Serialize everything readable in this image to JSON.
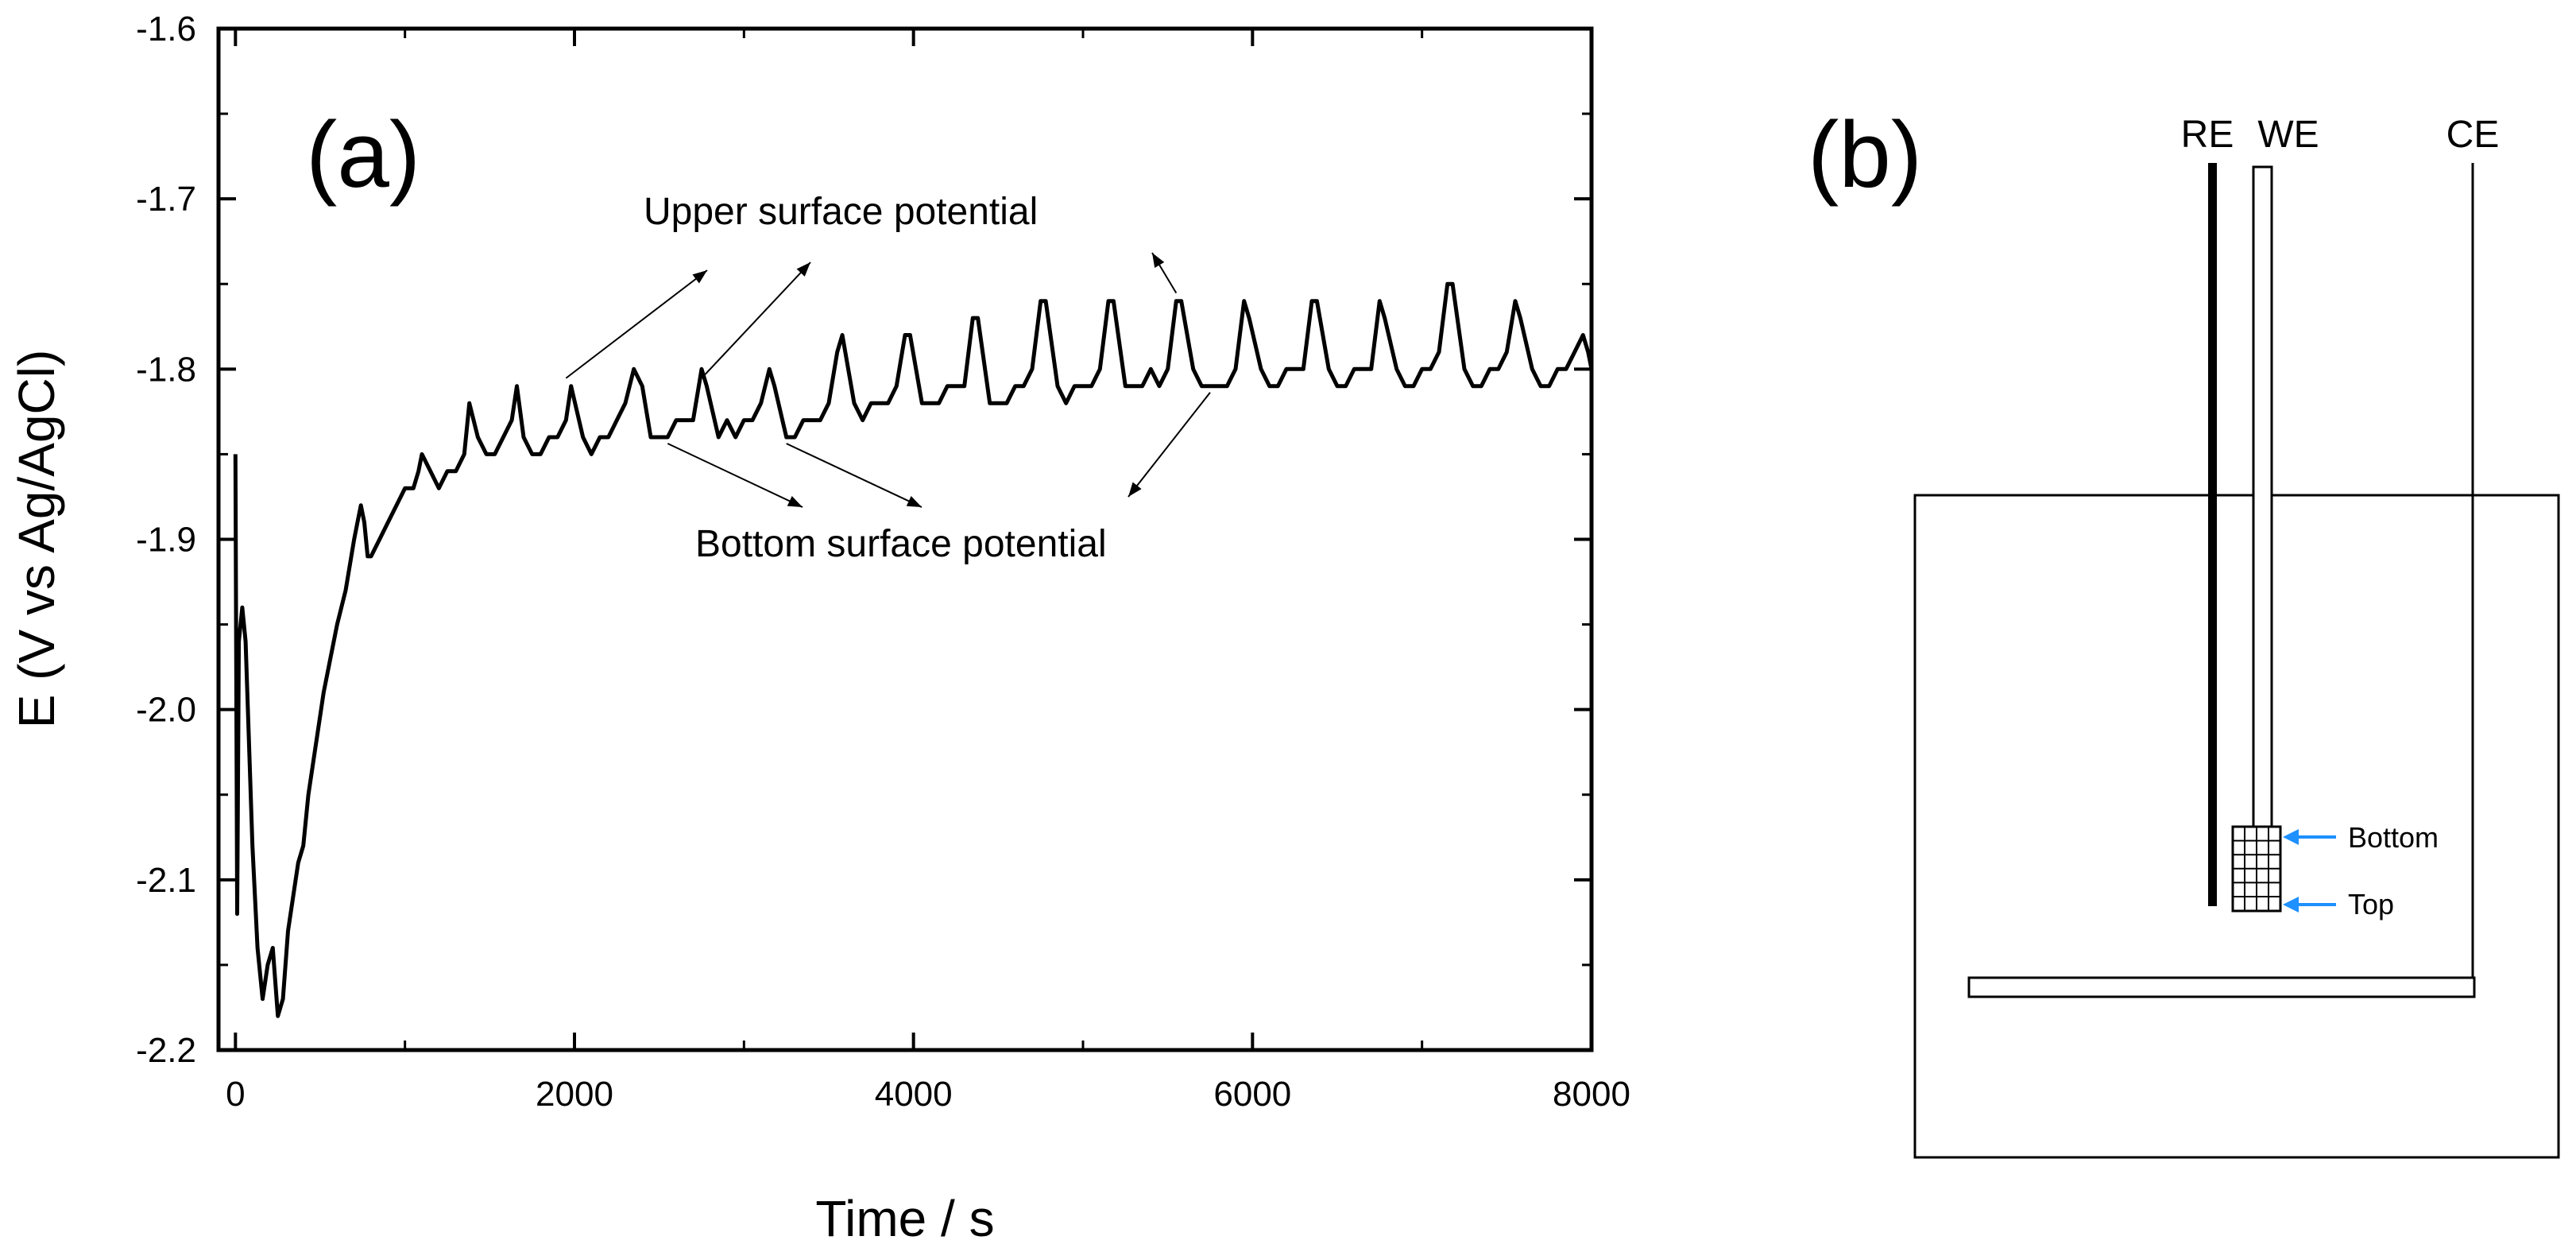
{
  "chart_data": {
    "type": "line",
    "panel_label": "(a)",
    "xlabel": "Time / s",
    "ylabel": "E (V vs Ag/AgCl)",
    "xlim": [
      -100,
      8000
    ],
    "ylim": [
      -2.2,
      -1.6
    ],
    "xticks": [
      0,
      2000,
      4000,
      6000,
      8000
    ],
    "yticks": [
      -2.2,
      -2.1,
      -2.0,
      -1.9,
      -1.8,
      -1.7,
      -1.6
    ],
    "ytick_labels": [
      "-2.2",
      "-2.1",
      "-2.0",
      "-1.9",
      "-1.8",
      "-1.7",
      "-1.6"
    ],
    "grid": false,
    "series": [
      {
        "name": "Potential",
        "x": [
          0,
          10,
          20,
          40,
          60,
          80,
          100,
          130,
          160,
          190,
          220,
          250,
          280,
          310,
          340,
          370,
          400,
          430,
          460,
          490,
          520,
          560,
          600,
          650,
          700,
          720,
          740,
          760,
          780,
          800,
          850,
          900,
          950,
          1000,
          1050,
          1080,
          1100,
          1150,
          1200,
          1250,
          1300,
          1350,
          1380,
          1430,
          1480,
          1530,
          1580,
          1630,
          1660,
          1700,
          1750,
          1800,
          1850,
          1900,
          1950,
          1980,
          2050,
          2100,
          2150,
          2200,
          2250,
          2300,
          2350,
          2400,
          2450,
          2500,
          2550,
          2600,
          2650,
          2700,
          2750,
          2780,
          2850,
          2900,
          2950,
          3000,
          3050,
          3100,
          3150,
          3180,
          3250,
          3300,
          3350,
          3400,
          3450,
          3500,
          3550,
          3580,
          3650,
          3700,
          3750,
          3800,
          3850,
          3900,
          3950,
          3980,
          4050,
          4100,
          4150,
          4200,
          4250,
          4300,
          4350,
          4380,
          4450,
          4500,
          4550,
          4600,
          4650,
          4700,
          4750,
          4780,
          4850,
          4900,
          4950,
          5000,
          5050,
          5100,
          5150,
          5180,
          5250,
          5300,
          5350,
          5400,
          5450,
          5500,
          5550,
          5580,
          5650,
          5700,
          5750,
          5800,
          5850,
          5900,
          5950,
          5980,
          6050,
          6100,
          6150,
          6200,
          6250,
          6300,
          6350,
          6380,
          6450,
          6500,
          6550,
          6600,
          6650,
          6700,
          6750,
          6780,
          6850,
          6900,
          6950,
          7000,
          7050,
          7100,
          7150,
          7180,
          7250,
          7300,
          7350,
          7400,
          7450,
          7500,
          7550,
          7580,
          7650,
          7700,
          7750,
          7800,
          7850,
          7900,
          7950,
          7980,
          8000
        ],
        "y": [
          -1.85,
          -2.12,
          -1.96,
          -1.94,
          -1.96,
          -2.02,
          -2.08,
          -2.14,
          -2.17,
          -2.15,
          -2.14,
          -2.18,
          -2.17,
          -2.13,
          -2.11,
          -2.09,
          -2.08,
          -2.05,
          -2.03,
          -2.01,
          -1.99,
          -1.97,
          -1.95,
          -1.93,
          -1.9,
          -1.89,
          -1.88,
          -1.89,
          -1.91,
          -1.91,
          -1.9,
          -1.89,
          -1.88,
          -1.87,
          -1.87,
          -1.86,
          -1.85,
          -1.86,
          -1.87,
          -1.86,
          -1.86,
          -1.85,
          -1.82,
          -1.84,
          -1.85,
          -1.85,
          -1.84,
          -1.83,
          -1.81,
          -1.84,
          -1.85,
          -1.85,
          -1.84,
          -1.84,
          -1.83,
          -1.81,
          -1.84,
          -1.85,
          -1.84,
          -1.84,
          -1.83,
          -1.82,
          -1.8,
          -1.81,
          -1.84,
          -1.84,
          -1.84,
          -1.83,
          -1.83,
          -1.83,
          -1.8,
          -1.81,
          -1.84,
          -1.83,
          -1.84,
          -1.83,
          -1.83,
          -1.82,
          -1.8,
          -1.81,
          -1.84,
          -1.84,
          -1.83,
          -1.83,
          -1.83,
          -1.82,
          -1.79,
          -1.78,
          -1.82,
          -1.83,
          -1.82,
          -1.82,
          -1.82,
          -1.81,
          -1.78,
          -1.78,
          -1.82,
          -1.82,
          -1.82,
          -1.81,
          -1.81,
          -1.81,
          -1.77,
          -1.77,
          -1.82,
          -1.82,
          -1.82,
          -1.81,
          -1.81,
          -1.8,
          -1.76,
          -1.76,
          -1.81,
          -1.82,
          -1.81,
          -1.81,
          -1.81,
          -1.8,
          -1.76,
          -1.76,
          -1.81,
          -1.81,
          -1.81,
          -1.8,
          -1.81,
          -1.8,
          -1.76,
          -1.76,
          -1.8,
          -1.81,
          -1.81,
          -1.81,
          -1.81,
          -1.8,
          -1.76,
          -1.77,
          -1.8,
          -1.81,
          -1.81,
          -1.8,
          -1.8,
          -1.8,
          -1.76,
          -1.76,
          -1.8,
          -1.81,
          -1.81,
          -1.8,
          -1.8,
          -1.8,
          -1.76,
          -1.77,
          -1.8,
          -1.81,
          -1.81,
          -1.8,
          -1.8,
          -1.79,
          -1.75,
          -1.75,
          -1.8,
          -1.81,
          -1.81,
          -1.8,
          -1.8,
          -1.79,
          -1.76,
          -1.77,
          -1.8,
          -1.81,
          -1.81,
          -1.8,
          -1.8,
          -1.79,
          -1.78,
          -1.79,
          -1.8
        ]
      }
    ],
    "annotations": [
      {
        "text": "Upper surface potential",
        "points_to_x": [
          1950,
          2750,
          5550
        ],
        "points_to_y": [
          -1.81,
          -1.81,
          -1.76
        ]
      },
      {
        "text": "Bottom surface potential",
        "points_to_x": [
          2550,
          3250,
          5750
        ],
        "points_to_y": [
          -1.84,
          -1.84,
          -1.81
        ]
      }
    ]
  },
  "diagram": {
    "panel_label": "(b)",
    "electrodes": [
      "RE",
      "WE",
      "CE"
    ],
    "callouts": [
      "Bottom",
      "Top"
    ],
    "callout_color": "#1e90ff"
  }
}
